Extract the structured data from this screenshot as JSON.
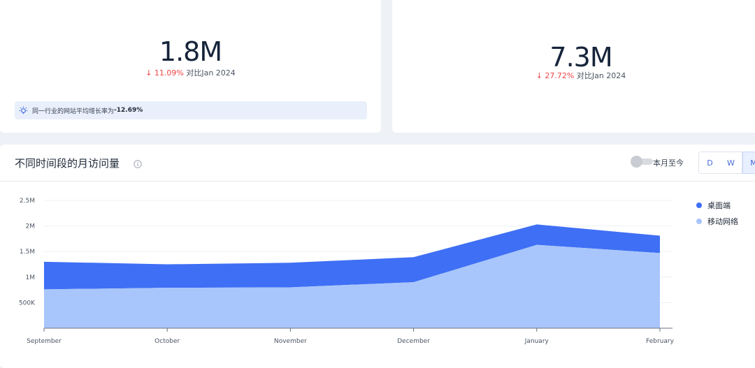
{
  "cards": {
    "left": {
      "value": "1.8M",
      "change_arrow": "↓",
      "change_pct": "11.09%",
      "change_label": "对比Jan 2024",
      "tip_text": "同一行业的网站平均增长率为 ",
      "tip_value": "-12.69%"
    },
    "right": {
      "value": "7.3M",
      "change_arrow": "↓",
      "change_pct": "27.72%",
      "change_label": "对比Jan 2024"
    }
  },
  "chart_section": {
    "title": "不同时间段的月访问量",
    "toggle_label": "本月至今",
    "toggle_on": false,
    "granularity_buttons": [
      "D",
      "W",
      "M"
    ],
    "selected_granularity": "M"
  },
  "colors": {
    "desktop": "#3f6ff5",
    "mobile": "#a8c6fb",
    "down": "#ef4444"
  },
  "chart_data": {
    "type": "area",
    "stacked": true,
    "categories": [
      "September",
      "October",
      "November",
      "December",
      "January",
      "February"
    ],
    "y_ticks": [
      "2.5M",
      "2M",
      "1.5M",
      "1M",
      "500K"
    ],
    "y_tick_values": [
      2500000,
      2000000,
      1500000,
      1000000,
      500000
    ],
    "ylim": [
      0,
      2500000
    ],
    "series": [
      {
        "name": "移动网络",
        "values": [
          760000,
          790000,
          800000,
          900000,
          1630000,
          1470000
        ]
      },
      {
        "name": "桌面端",
        "values": [
          540000,
          460000,
          480000,
          490000,
          400000,
          340000
        ]
      }
    ],
    "legend": [
      "桌面端",
      "移动网络"
    ],
    "legend_position": "right",
    "grid": true
  }
}
